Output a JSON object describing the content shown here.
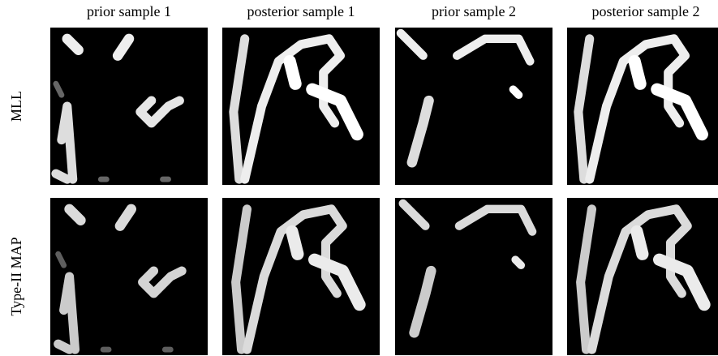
{
  "columns": [
    "prior sample 1",
    "posterior sample 1",
    "prior sample 2",
    "posterior sample 2"
  ],
  "rows": [
    "MLL",
    "Type-II MAP"
  ]
}
